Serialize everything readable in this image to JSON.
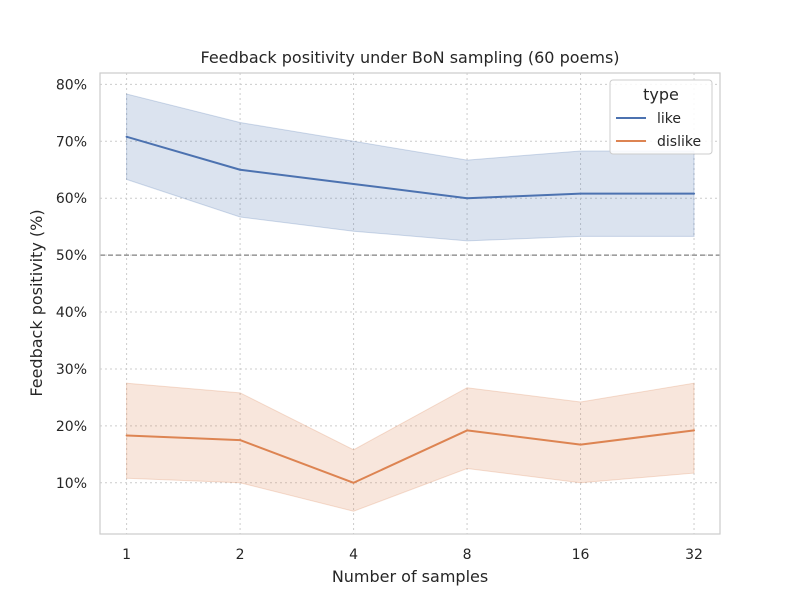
{
  "chart_data": {
    "type": "line",
    "title": "Feedback positivity under BoN sampling (60 poems)",
    "xlabel": "Number of samples",
    "ylabel": "Feedback positivity (%)",
    "x": [
      1,
      2,
      4,
      8,
      16,
      32
    ],
    "x_tick_labels": [
      "1",
      "2",
      "4",
      "8",
      "16",
      "32"
    ],
    "x_scale": "log2",
    "xlim": [
      0.85,
      37.5
    ],
    "ylim": [
      1,
      82
    ],
    "y_ticks": [
      10,
      20,
      30,
      40,
      50,
      60,
      70,
      80
    ],
    "y_tick_labels": [
      "10%",
      "20%",
      "30%",
      "40%",
      "50%",
      "60%",
      "70%",
      "80%"
    ],
    "reference_line": {
      "y": 50,
      "style": "dashed",
      "color": "#808080"
    },
    "grid": true,
    "legend": {
      "title": "type",
      "placement": "top-right"
    },
    "series": [
      {
        "name": "like",
        "color": "#4c72b0",
        "values": [
          70.8,
          65.0,
          62.5,
          60.0,
          60.8,
          60.8
        ],
        "ci_low": [
          63.3,
          56.7,
          54.2,
          52.5,
          53.3,
          53.3
        ],
        "ci_high": [
          78.3,
          73.3,
          70.0,
          66.7,
          68.3,
          68.3
        ]
      },
      {
        "name": "dislike",
        "color": "#dd8452",
        "values": [
          18.3,
          17.5,
          10.0,
          19.2,
          16.7,
          19.2
        ],
        "ci_low": [
          10.8,
          10.0,
          5.0,
          12.5,
          10.0,
          11.7
        ],
        "ci_high": [
          27.5,
          25.8,
          15.8,
          26.7,
          24.2,
          27.5
        ]
      }
    ]
  }
}
